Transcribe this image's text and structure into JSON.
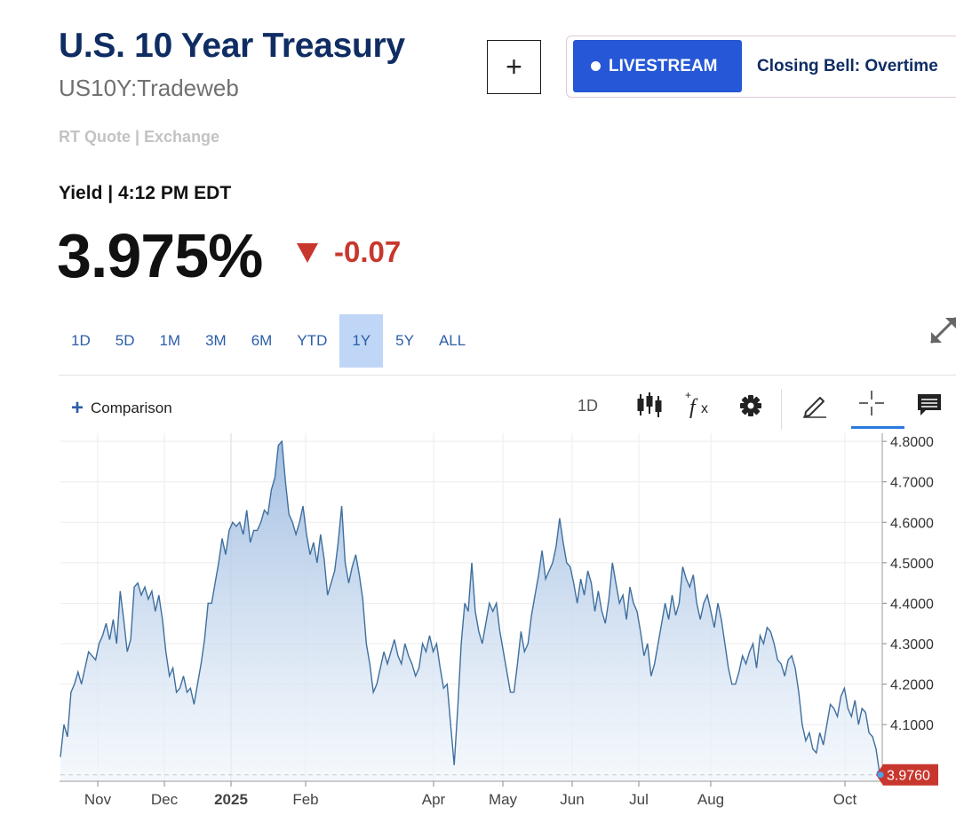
{
  "header": {
    "title": "U.S. 10 Year Treasury",
    "symbol": "US10Y:Tradeweb",
    "rt_quote": "RT Quote | Exchange",
    "add_label": "+"
  },
  "livestream": {
    "button_label": "LIVESTREAM",
    "show_title": "Closing Bell: Overtime"
  },
  "quote": {
    "yield_label": "Yield | 4:12 PM EDT",
    "price": "3.975%",
    "change": "-0.07",
    "change_color": "#c8372d"
  },
  "ranges": [
    "1D",
    "5D",
    "1M",
    "3M",
    "6M",
    "YTD",
    "1Y",
    "5Y",
    "ALL"
  ],
  "active_range": "1Y",
  "toolbar": {
    "comparison_label": "Comparison",
    "interval_label": "1D",
    "icons": [
      "candlestick-icon",
      "function-icon",
      "gear-icon",
      "pencil-icon",
      "crosshair-icon",
      "comment-icon"
    ]
  },
  "chart_data": {
    "type": "area",
    "x_ticks": [
      "Nov",
      "Dec",
      "2025",
      "Feb",
      "Apr",
      "May",
      "Jun",
      "Jul",
      "Aug",
      "Oct"
    ],
    "y_ticks": [
      "4.8000",
      "4.7000",
      "4.6000",
      "4.5000",
      "4.4000",
      "4.3000",
      "4.2000",
      "4.1000"
    ],
    "ylim": [
      3.96,
      4.82
    ],
    "last_value_label": "3.9760",
    "series": [
      {
        "values": [
          4.02,
          4.1,
          4.07,
          4.18,
          4.2,
          4.23,
          4.2,
          4.24,
          4.28,
          4.27,
          4.26,
          4.3,
          4.32,
          4.35,
          4.31,
          4.36,
          4.3,
          4.43,
          4.36,
          4.28,
          4.31,
          4.44,
          4.45,
          4.42,
          4.44,
          4.41,
          4.43,
          4.38,
          4.42,
          4.36,
          4.28,
          4.22,
          4.24,
          4.18,
          4.19,
          4.22,
          4.18,
          4.19,
          4.15,
          4.2,
          4.25,
          4.31,
          4.4,
          4.4,
          4.45,
          4.5,
          4.56,
          4.52,
          4.58,
          4.6,
          4.59,
          4.6,
          4.57,
          4.63,
          4.55,
          4.58,
          4.58,
          4.6,
          4.63,
          4.62,
          4.68,
          4.71,
          4.79,
          4.8,
          4.7,
          4.62,
          4.6,
          4.57,
          4.6,
          4.64,
          4.57,
          4.52,
          4.55,
          4.5,
          4.57,
          4.51,
          4.42,
          4.45,
          4.48,
          4.55,
          4.64,
          4.5,
          4.45,
          4.49,
          4.52,
          4.47,
          4.41,
          4.3,
          4.25,
          4.18,
          4.2,
          4.24,
          4.28,
          4.25,
          4.28,
          4.31,
          4.27,
          4.25,
          4.3,
          4.27,
          4.25,
          4.22,
          4.24,
          4.3,
          4.28,
          4.32,
          4.28,
          4.3,
          4.24,
          4.19,
          4.2,
          4.1,
          4.0,
          4.14,
          4.3,
          4.4,
          4.38,
          4.5,
          4.38,
          4.33,
          4.3,
          4.35,
          4.4,
          4.38,
          4.4,
          4.33,
          4.28,
          4.23,
          4.18,
          4.18,
          4.25,
          4.33,
          4.28,
          4.3,
          4.37,
          4.42,
          4.47,
          4.53,
          4.46,
          4.48,
          4.5,
          4.54,
          4.61,
          4.55,
          4.5,
          4.49,
          4.45,
          4.4,
          4.46,
          4.42,
          4.48,
          4.45,
          4.38,
          4.43,
          4.38,
          4.35,
          4.41,
          4.5,
          4.45,
          4.4,
          4.42,
          4.36,
          4.44,
          4.4,
          4.38,
          4.33,
          4.27,
          4.3,
          4.22,
          4.25,
          4.3,
          4.35,
          4.4,
          4.36,
          4.42,
          4.37,
          4.4,
          4.49,
          4.46,
          4.44,
          4.47,
          4.4,
          4.36,
          4.4,
          4.42,
          4.38,
          4.34,
          4.4,
          4.36,
          4.3,
          4.24,
          4.2,
          4.2,
          4.23,
          4.27,
          4.25,
          4.28,
          4.3,
          4.24,
          4.32,
          4.3,
          4.34,
          4.33,
          4.3,
          4.26,
          4.25,
          4.22,
          4.26,
          4.27,
          4.24,
          4.18,
          4.1,
          4.06,
          4.08,
          4.04,
          4.03,
          4.08,
          4.05,
          4.1,
          4.15,
          4.14,
          4.12,
          4.17,
          4.19,
          4.14,
          4.12,
          4.16,
          4.1,
          4.14,
          4.13,
          4.08,
          4.07,
          4.04,
          3.98
        ]
      }
    ]
  },
  "colors": {
    "title": "#0f2d63",
    "accent": "#2557d6",
    "line": "#3f6f9e",
    "negative": "#c8372d",
    "active_range_bg": "#bfd6f6"
  }
}
